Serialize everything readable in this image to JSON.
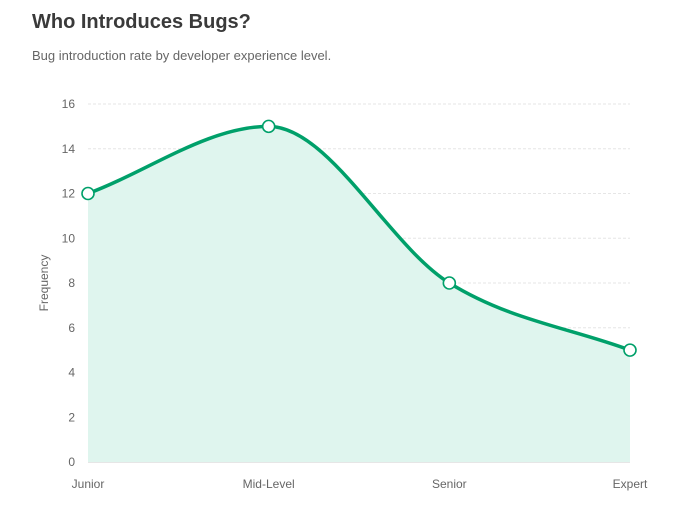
{
  "header": {
    "title": "Who Introduces Bugs?",
    "subtitle": "Bug introduction rate by developer experience level."
  },
  "chart_data": {
    "type": "area",
    "title": "Who Introduces Bugs?",
    "subtitle": "Bug introduction rate by developer experience level.",
    "categories": [
      "Junior",
      "Mid-Level",
      "Senior",
      "Expert"
    ],
    "series": [
      {
        "values": [
          12,
          15,
          8,
          5
        ]
      }
    ],
    "xlabel": "",
    "ylabel": "Frequency",
    "ylim": [
      0,
      16
    ],
    "yticks": [
      "0",
      "2",
      "4",
      "6",
      "8",
      "10",
      "12",
      "14",
      "16"
    ],
    "grid": true,
    "legend": "none",
    "colors": {
      "line": "#00a06a",
      "fill": "#dff5ee",
      "grid": "#e6e6e6",
      "marker_fill": "#ffffff"
    }
  }
}
